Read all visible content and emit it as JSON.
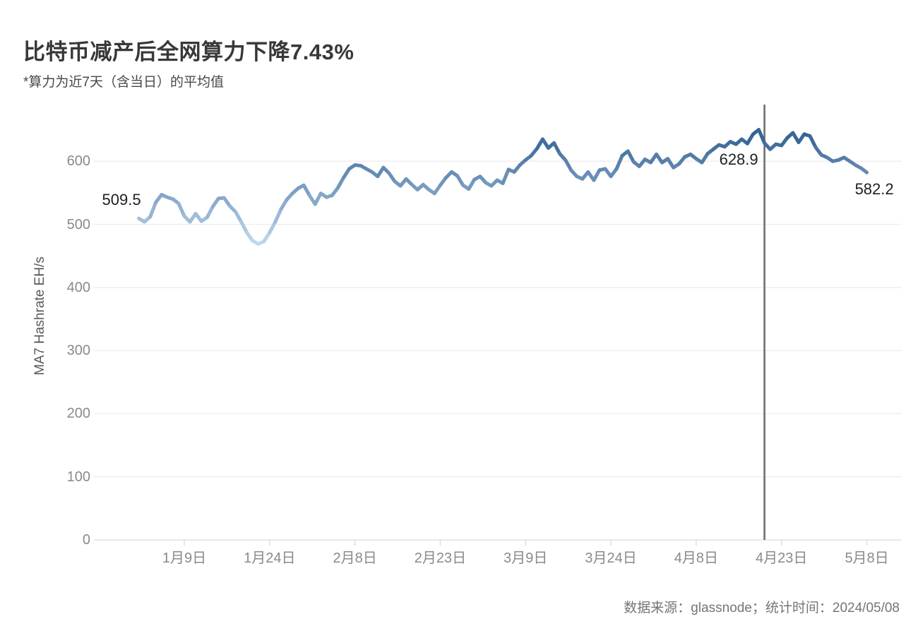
{
  "page": {
    "title": "比特币减产后全网算力下降7.43%",
    "subtitle": "*算力为近7天（含当日）的平均值",
    "footer": "数据来源：glassnode；统计时间：2024/05/08"
  },
  "chart_data": {
    "type": "line",
    "title": "比特币减产后全网算力下降7.43%",
    "subtitle_note": "*算力为近7天（含当日）的平均值",
    "ylabel": "MA7 Hashrate EH/s",
    "ylim": [
      0,
      660
    ],
    "y_ticks": [
      0,
      100,
      200,
      300,
      400,
      500,
      600
    ],
    "x_tick_labels": [
      "1月9日",
      "1月24日",
      "2月8日",
      "2月23日",
      "3月9日",
      "3月24日",
      "4月8日",
      "4月23日",
      "5月8日"
    ],
    "x_tick_day_indices": [
      8,
      23,
      38,
      53,
      68,
      83,
      98,
      113,
      128
    ],
    "grid": "horizontal",
    "legend": "none",
    "series": [
      {
        "name": "MA7 Hashrate EH/s",
        "values": [
          509.5,
          504,
          512,
          535,
          547,
          543,
          540,
          533,
          513,
          504,
          517,
          505,
          511,
          528,
          541,
          542,
          529,
          520,
          504,
          487,
          474,
          469,
          473,
          487,
          504,
          524,
          539,
          549,
          557,
          562,
          546,
          532,
          549,
          543,
          546,
          558,
          574,
          588,
          594,
          593,
          588,
          583,
          576,
          590,
          581,
          568,
          561,
          572,
          563,
          555,
          563,
          555,
          549,
          562,
          574,
          583,
          577,
          562,
          556,
          571,
          576,
          566,
          561,
          570,
          565,
          587,
          583,
          594,
          602,
          609,
          620,
          635,
          621,
          629,
          612,
          602,
          586,
          576,
          572,
          583,
          570,
          586,
          588,
          576,
          588,
          609,
          616,
          599,
          592,
          603,
          598,
          611,
          598,
          604,
          590,
          596,
          607,
          611,
          604,
          598,
          612,
          619,
          626,
          623,
          631,
          627,
          635,
          628,
          643,
          650,
          628.9,
          619,
          627,
          625,
          637,
          645,
          630,
          643,
          640,
          622,
          610,
          606,
          600,
          602,
          606,
          600,
          594,
          589,
          582.2
        ]
      }
    ],
    "vline": {
      "day_index": 110
    },
    "annotations": [
      {
        "label": "509.5",
        "day_index": 0,
        "placement": "above-left"
      },
      {
        "label": "628.9",
        "day_index": 110,
        "placement": "below-left-of-vline"
      },
      {
        "label": "582.2",
        "day_index": 128,
        "placement": "below-right"
      }
    ],
    "colors": {
      "line_low": "#c6def3",
      "line_high": "#2b5a8d",
      "vline": "#6f6f6f",
      "grid": "#ededed",
      "baseline": "#dcdcdc",
      "tick": "#d9d9d9",
      "tick_text": "#8a8a8a",
      "annotation_text": "#1f1f1f"
    },
    "source_note": "数据来源：glassnode；统计时间：2024/05/08"
  }
}
